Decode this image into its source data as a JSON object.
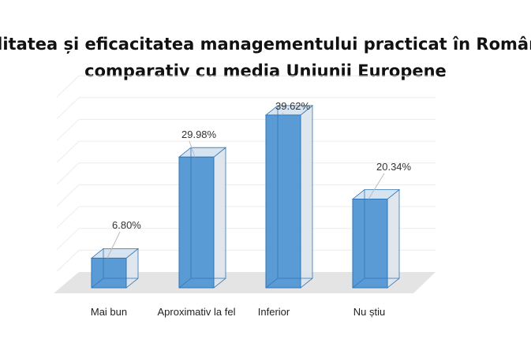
{
  "chart_data": {
    "type": "bar",
    "style": "3d-column",
    "title_line1": "Calitatea și eficacitatea managementului practicat în România",
    "title_line2": "comparativ cu media Uniunii Europene",
    "categories": [
      "Mai bun",
      "Aproximativ la fel",
      "Inferior",
      "Nu știu"
    ],
    "values": [
      6.8,
      29.98,
      39.62,
      20.34
    ],
    "data_labels": [
      "6.80%",
      "29.98%",
      "39.62%",
      "20.34%"
    ],
    "ylim": [
      0,
      40
    ],
    "grid": true,
    "bar_color": "#5b9bd5",
    "xlabel": "",
    "ylabel": ""
  }
}
